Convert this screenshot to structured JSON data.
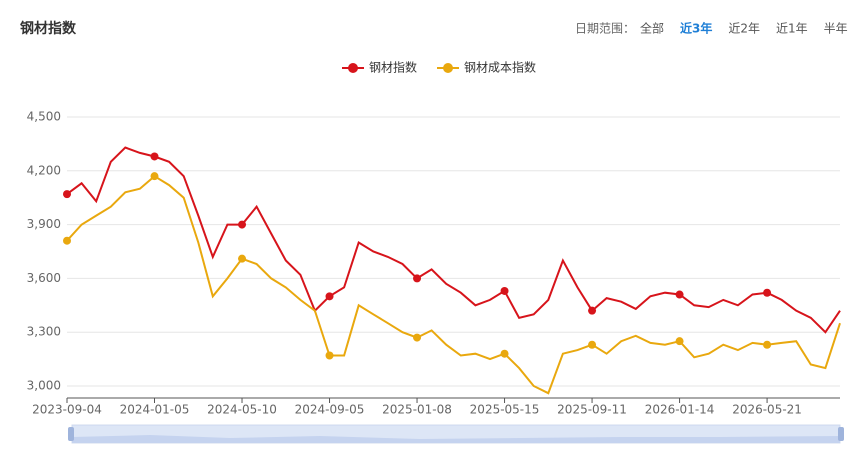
{
  "header": {
    "title": "钢材指数",
    "range_label": "日期范围：",
    "ranges": [
      "全部",
      "近3年",
      "近2年",
      "近1年",
      "半年"
    ],
    "active_range": 1
  },
  "chart_data": {
    "type": "line",
    "categories": [
      "2023-09-04",
      null,
      null,
      null,
      null,
      null,
      "2024-01-05",
      null,
      null,
      null,
      null,
      null,
      "2024-05-10",
      null,
      null,
      null,
      null,
      null,
      "2024-09-05",
      null,
      null,
      null,
      null,
      null,
      "2025-01-08",
      null,
      null,
      null,
      null,
      null,
      "2025-05-15",
      null,
      null,
      null,
      null,
      null,
      "2025-09-11",
      null,
      null,
      null,
      null,
      null,
      "2026-01-14",
      null,
      null,
      null,
      null,
      null,
      "2026-05-21",
      null,
      null,
      null,
      null,
      null
    ],
    "series": [
      {
        "name": "钢材指数",
        "color": "#d7141b",
        "values": [
          4070,
          4130,
          4030,
          4250,
          4330,
          4300,
          4280,
          4250,
          4170,
          3950,
          3720,
          3900,
          3900,
          4000,
          3850,
          3700,
          3620,
          3420,
          3500,
          3550,
          3800,
          3750,
          3720,
          3680,
          3600,
          3650,
          3570,
          3520,
          3450,
          3480,
          3530,
          3380,
          3400,
          3480,
          3700,
          3550,
          3420,
          3490,
          3470,
          3430,
          3500,
          3520,
          3510,
          3450,
          3440,
          3480,
          3450,
          3510,
          3520,
          3480,
          3420,
          3380,
          3300,
          3420
        ]
      },
      {
        "name": "钢材成本指数",
        "color": "#e9a80e",
        "values": [
          3810,
          3900,
          3950,
          4000,
          4080,
          4100,
          4170,
          4120,
          4050,
          3800,
          3500,
          3600,
          3710,
          3680,
          3600,
          3550,
          3480,
          3420,
          3170,
          3170,
          3450,
          3400,
          3350,
          3300,
          3270,
          3310,
          3230,
          3170,
          3180,
          3150,
          3180,
          3100,
          3000,
          2960,
          3180,
          3200,
          3230,
          3180,
          3250,
          3280,
          3240,
          3230,
          3250,
          3160,
          3180,
          3230,
          3200,
          3240,
          3230,
          3240,
          3250,
          3120,
          3100,
          3350
        ]
      }
    ],
    "ylim": [
      2933,
      4500
    ],
    "yticks": [
      {
        "value": 3000,
        "label": "3,000"
      },
      {
        "value": 3300,
        "label": "3,300"
      },
      {
        "value": 3600,
        "label": "3,600"
      },
      {
        "value": 3900,
        "label": "3,900"
      },
      {
        "value": 4200,
        "label": "4,200"
      },
      {
        "value": 4500,
        "label": "4,500"
      }
    ],
    "grid": true
  }
}
